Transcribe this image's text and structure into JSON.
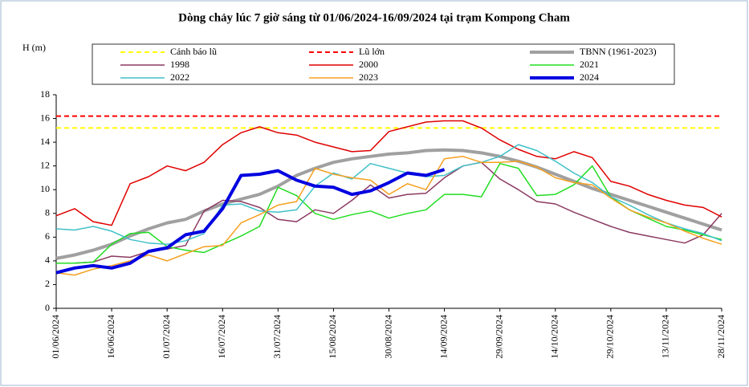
{
  "chart_data": {
    "type": "line",
    "title": "Dòng chảy lúc 7 giờ sáng từ 01/06/2024-16/09/2024 tại trạm Kompong Cham",
    "y_label": "H (m)",
    "ylim": [
      0,
      18
    ],
    "yticks": [
      0,
      2,
      4,
      6,
      8,
      10,
      12,
      14,
      16,
      18
    ],
    "categories": [
      "01/06/2024",
      null,
      null,
      "16/06/2024",
      null,
      null,
      "01/07/2024",
      null,
      null,
      "16/07/2024",
      null,
      null,
      "31/07/2024",
      null,
      null,
      "15/08/2024",
      null,
      null,
      "30/08/2024",
      null,
      null,
      "14/09/2024",
      null,
      null,
      "29/09/2024",
      null,
      null,
      "14/10/2024",
      null,
      null,
      "29/10/2024",
      null,
      null,
      "13/11/2024",
      null,
      null,
      "28/11/2024"
    ],
    "hlines": [
      {
        "name": "Cảnh báo lũ",
        "value": 15.2,
        "color": "#ffff00"
      },
      {
        "name": "Lũ lớn",
        "value": 16.2,
        "color": "#ff0000"
      }
    ],
    "series": [
      {
        "name": "TBNN (1961-2023)",
        "color": "#a0a0a0",
        "width": 4,
        "values": [
          4.2,
          4.5,
          4.9,
          5.4,
          6.1,
          6.7,
          7.2,
          7.5,
          8.2,
          8.8,
          9.2,
          9.6,
          10.3,
          11.2,
          11.8,
          12.3,
          12.6,
          12.8,
          13.0,
          13.1,
          13.3,
          13.35,
          13.3,
          13.1,
          12.8,
          12.4,
          11.9,
          11.3,
          10.7,
          10.1,
          9.6,
          9.1,
          8.6,
          8.1,
          7.6,
          7.1,
          6.6
        ]
      },
      {
        "name": "1998",
        "color": "#8b3a62",
        "width": 1.5,
        "values": [
          3.8,
          3.8,
          3.9,
          4.4,
          4.3,
          4.8,
          5.0,
          5.3,
          8.2,
          9.1,
          9.0,
          8.5,
          7.5,
          7.3,
          8.3,
          8.0,
          9.1,
          10.4,
          9.3,
          9.6,
          9.7,
          11.0,
          12.0,
          12.3,
          10.9,
          10.0,
          9.0,
          8.8,
          8.1,
          7.5,
          6.9,
          6.4,
          6.1,
          5.8,
          5.5,
          6.2,
          8.0
        ]
      },
      {
        "name": "2000",
        "color": "#e00000",
        "width": 1.5,
        "values": [
          7.8,
          8.4,
          7.3,
          7.0,
          10.5,
          11.1,
          12.0,
          11.6,
          12.3,
          13.8,
          14.8,
          15.3,
          14.8,
          14.6,
          14.0,
          13.6,
          13.2,
          13.3,
          14.9,
          15.3,
          15.7,
          15.8,
          15.8,
          15.2,
          14.2,
          13.4,
          12.8,
          12.6,
          13.2,
          12.7,
          10.7,
          10.3,
          9.6,
          9.1,
          8.7,
          8.5,
          7.7
        ]
      },
      {
        "name": "2021",
        "color": "#22dd22",
        "width": 1.5,
        "values": [
          3.8,
          3.8,
          3.9,
          5.4,
          6.3,
          6.4,
          5.2,
          4.9,
          4.7,
          5.4,
          6.1,
          6.9,
          10.2,
          9.5,
          8.0,
          7.5,
          7.9,
          8.2,
          7.6,
          8.0,
          8.3,
          9.6,
          9.6,
          9.4,
          12.2,
          11.8,
          9.5,
          9.6,
          10.4,
          12.0,
          9.4,
          8.3,
          7.6,
          6.9,
          6.6,
          6.2,
          5.8
        ]
      },
      {
        "name": "2022",
        "color": "#40c0c8",
        "width": 1.5,
        "values": [
          6.7,
          6.6,
          6.9,
          6.5,
          5.8,
          5.5,
          5.4,
          5.7,
          6.3,
          8.7,
          8.8,
          8.2,
          8.1,
          8.3,
          10.3,
          11.4,
          10.9,
          12.2,
          11.8,
          11.4,
          11.1,
          11.2,
          12.0,
          12.3,
          12.8,
          13.8,
          13.3,
          12.4,
          11.4,
          10.6,
          9.4,
          8.7,
          7.9,
          7.2,
          6.7,
          6.3,
          5.7
        ]
      },
      {
        "name": "2023",
        "color": "#f5a020",
        "width": 1.5,
        "values": [
          3.0,
          2.8,
          3.3,
          3.6,
          4.0,
          4.5,
          4.0,
          4.6,
          5.2,
          5.3,
          7.2,
          7.9,
          8.7,
          9.0,
          11.8,
          11.3,
          11.0,
          10.8,
          9.6,
          10.5,
          10.0,
          12.6,
          12.8,
          12.3,
          12.3,
          12.4,
          11.9,
          11.0,
          10.6,
          10.4,
          9.3,
          8.3,
          7.7,
          7.2,
          6.5,
          5.9,
          5.4
        ]
      },
      {
        "name": "2024",
        "color": "#0000e0",
        "width": 4,
        "values": [
          3.0,
          3.4,
          3.6,
          3.4,
          3.8,
          4.8,
          5.1,
          6.2,
          6.5,
          8.4,
          11.2,
          11.3,
          11.6,
          10.8,
          10.3,
          10.2,
          9.6,
          9.9,
          10.6,
          11.4,
          11.2,
          11.7,
          null,
          null,
          null,
          null,
          null,
          null,
          null,
          null,
          null,
          null,
          null,
          null,
          null,
          null,
          null
        ]
      }
    ]
  }
}
